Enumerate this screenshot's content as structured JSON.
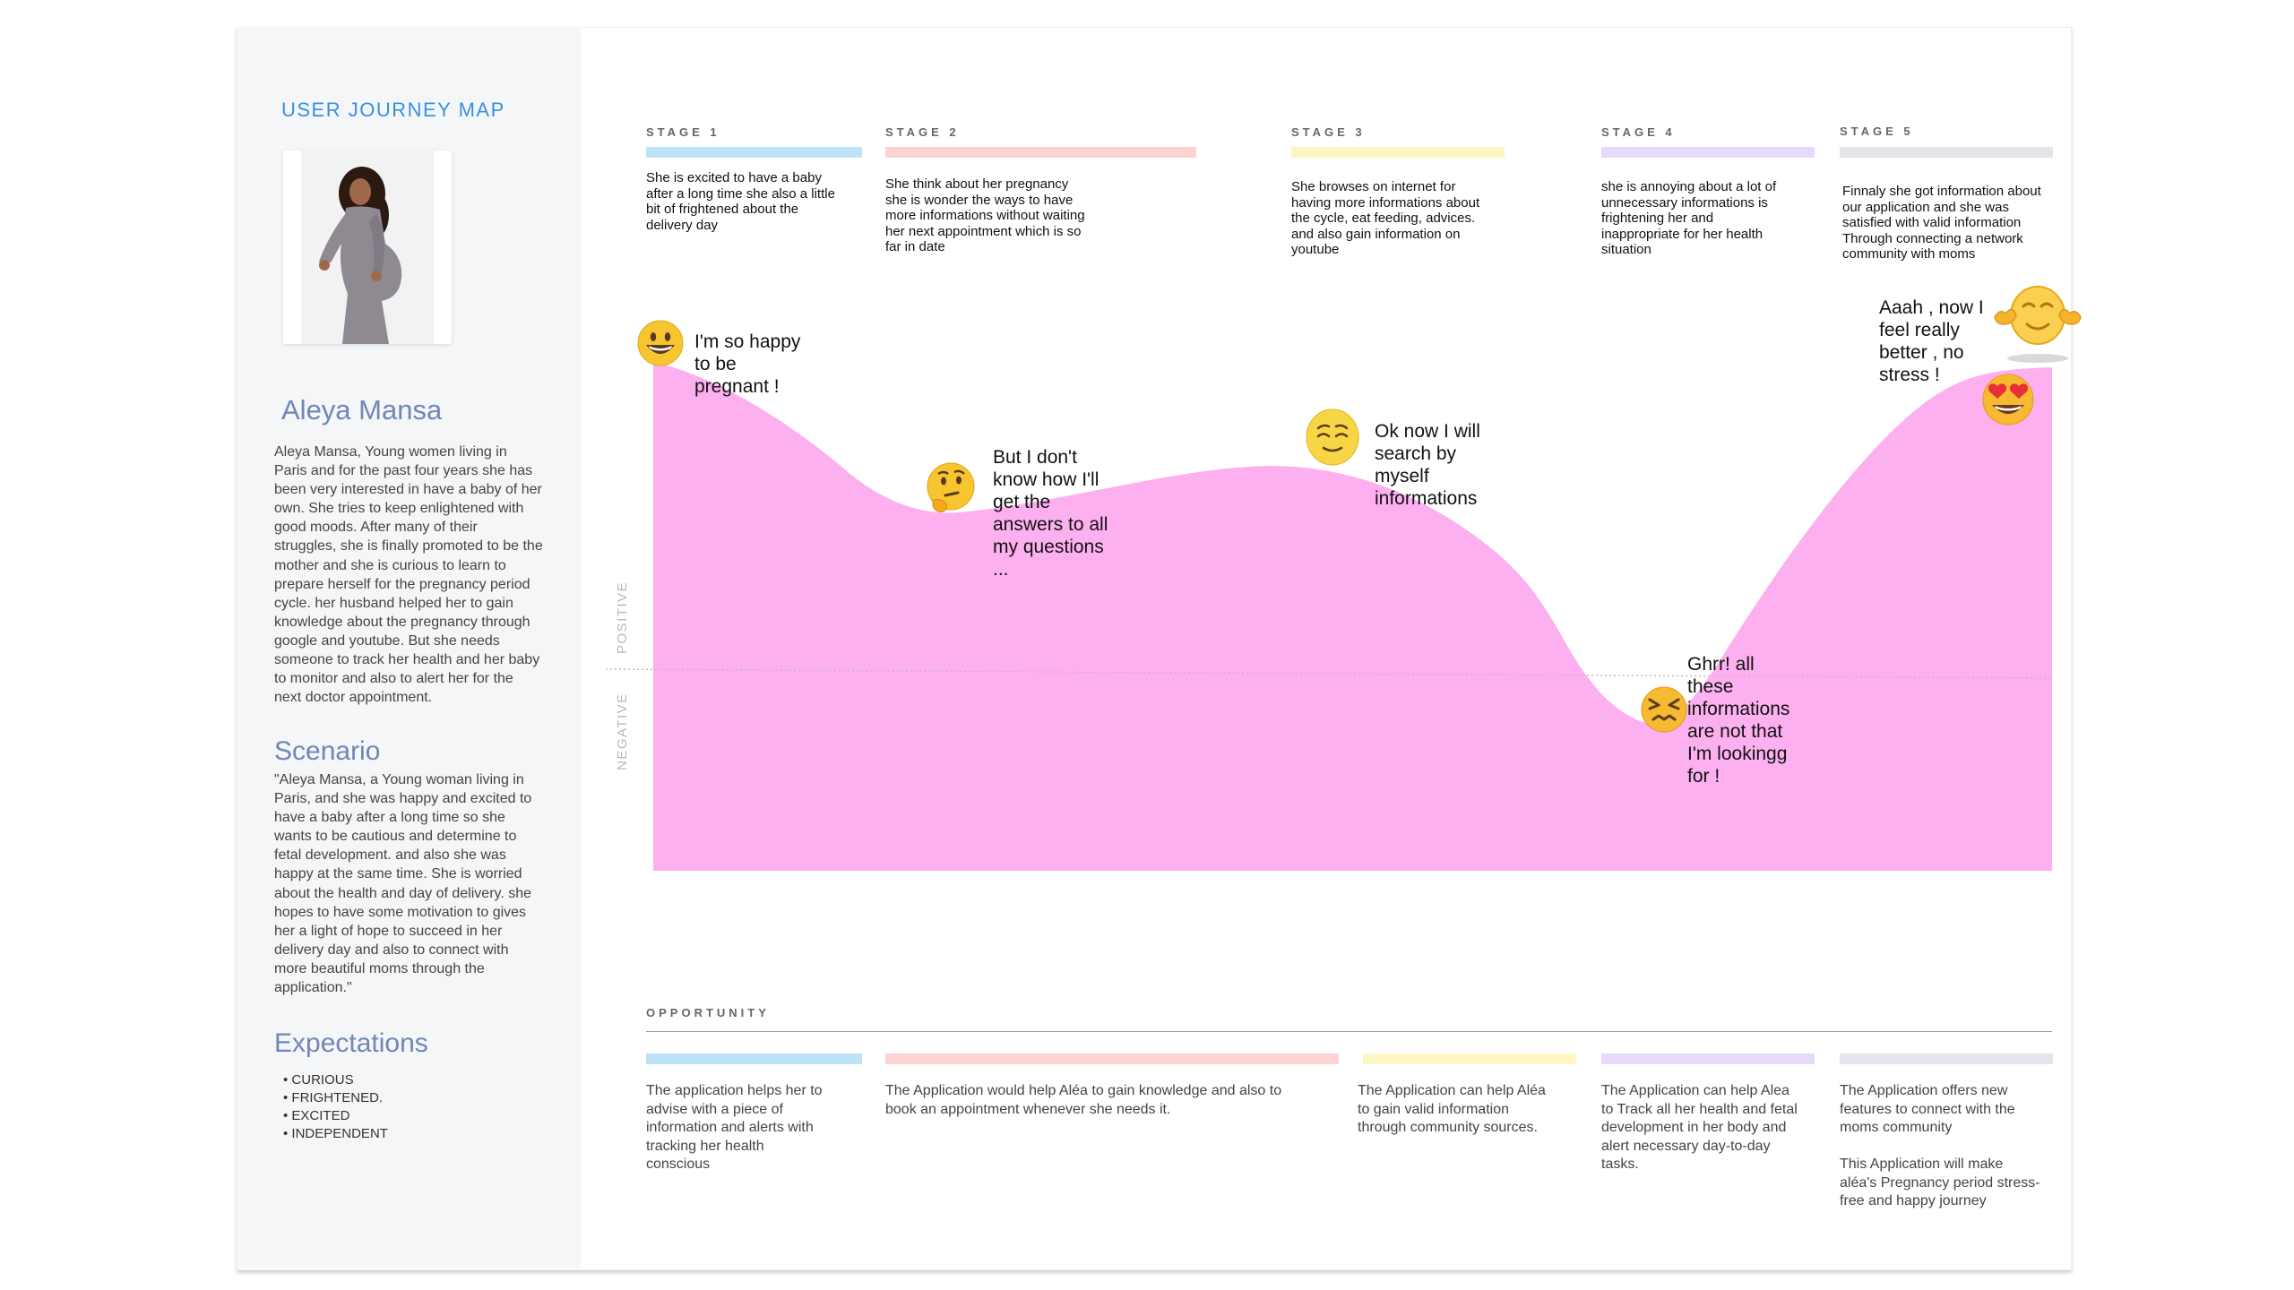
{
  "sidebar": {
    "title": "USER JOURNEY MAP",
    "persona_name": "Aleya Mansa",
    "bio": "Aleya Mansa, Young women living in Paris and for the past four years she has been very interested in have a baby of her own. She tries to keep enlightened with good moods. After many of their struggles, she is finally promoted to be the mother and she is curious to learn to prepare herself for the pregnancy period cycle. her husband helped her to gain knowledge about the pregnancy through google and youtube. But she needs someone to track her health and her baby to monitor and also to alert her for the next doctor appointment.",
    "scenario_heading": "Scenario",
    "scenario_text": "\"Aleya Mansa, a Young woman living in Paris, and she was happy and excited to have a baby after a long time so she wants to be cautious and determine to fetal development. and also she was happy at the same time. She is worried about the health and day of delivery. she hopes to have some motivation to gives her a light of hope to succeed in her delivery day and also to connect with more beautiful moms through the application.\"",
    "expectations_heading": "Expectations",
    "expectations": [
      "CURIOUS",
      "FRIGHTENED.",
      "EXCITED",
      "INDEPENDENT"
    ]
  },
  "stages": [
    {
      "label": "STAGE 1",
      "color": "#bde3f9",
      "description": "She is excited to have a baby after a long time she also a little bit of frightened about the delivery day"
    },
    {
      "label": "STAGE 2",
      "color": "#fbd3d3",
      "description": "She  think about her pregnancy she is wonder the ways to have more informations without waiting her next appointment which is so far in date"
    },
    {
      "label": "STAGE 3",
      "color": "#fdf6c4",
      "description": "She  browses on internet for having more informations about the cycle,  eat feeding, advices. and also gain information on youtube"
    },
    {
      "label": "STAGE 4",
      "color": "#e7d9fb",
      "description": "she is annoying about a lot of unnecessary informations is frightening her and inappropriate for her  health situation"
    },
    {
      "label": "STAGE 5",
      "color": "#e4e4ea",
      "description": "Finnaly she got information about our application and she was satisfied with valid information Through connecting a network community with moms"
    }
  ],
  "emotions": [
    {
      "text": "I'm so happy to be pregnant !",
      "icon": "grinning-face-icon"
    },
    {
      "text": "But I don't know how I'll get the answers to all my questions ...",
      "icon": "thinking-face-icon"
    },
    {
      "text": "Ok now I will search by myself informations",
      "icon": "relieved-face-icon"
    },
    {
      "text": "Ghrr!  all these informations are not that I'm lookingg for !",
      "icon": "confounded-face-icon"
    },
    {
      "text": "Aaah , now I feel  really better , no stress !",
      "icon": "heart-eyes-face-icon"
    }
  ],
  "axis": {
    "positive": "POSITIVE",
    "negative": "NEGATIVE"
  },
  "curve_color": "#fdb0f0",
  "opportunity": {
    "title": "OPPORTUNITY",
    "items": [
      {
        "color": "#bde3f9",
        "text": "The application helps her to advise with a piece of information and alerts with tracking her health conscious"
      },
      {
        "color": "#fbd3d3",
        "text": "The Application would help Aléa to gain knowledge and also to book an appointment whenever she needs it."
      },
      {
        "color": "#fdf6c4",
        "text": "The Application can help Aléa to gain valid information through community sources."
      },
      {
        "color": "#e7d9fb",
        "text": "The Application can help Alea to Track all her health and fetal development in her body and alert necessary day-to-day tasks."
      },
      {
        "color": "#e4e4ea",
        "text": "The Application offers new features to connect with the moms  community",
        "text2": "This Application will make aléa's Pregnancy period stress-free and happy journey"
      }
    ]
  }
}
